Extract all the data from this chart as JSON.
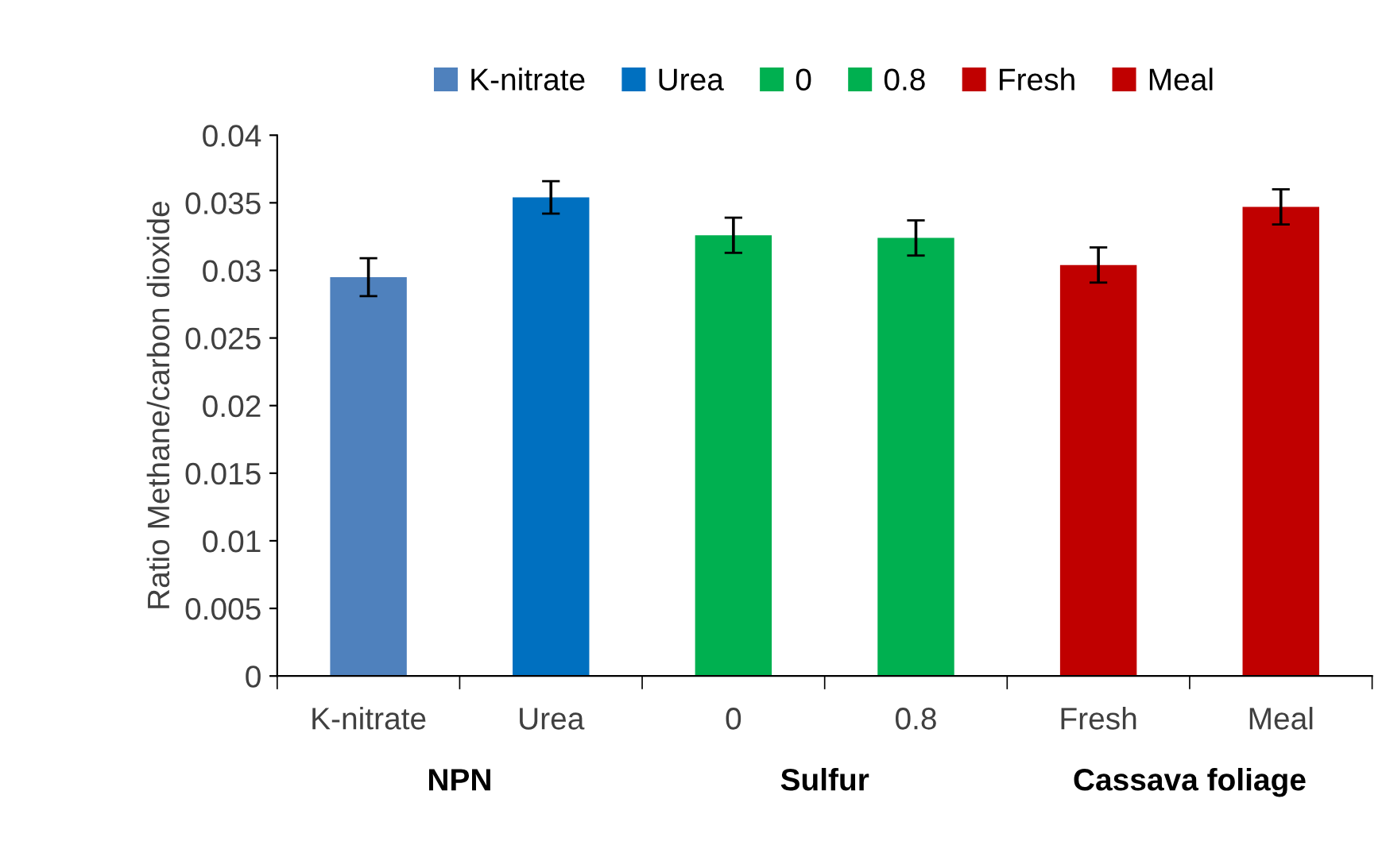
{
  "chart_data": {
    "type": "bar",
    "ylabel": "Ratio Methane/carbon dioxide",
    "categories": [
      "K-nitrate",
      "Urea",
      "0",
      "0.8",
      "Fresh",
      "Meal"
    ],
    "series": [
      {
        "name": "K-nitrate",
        "color": "#4f81bd",
        "values": [
          0.0295,
          null,
          null,
          null,
          null,
          null
        ],
        "errors": [
          0.0014,
          null,
          null,
          null,
          null,
          null
        ]
      },
      {
        "name": "Urea",
        "color": "#0070c0",
        "values": [
          null,
          0.0354,
          null,
          null,
          null,
          null
        ],
        "errors": [
          null,
          0.0012,
          null,
          null,
          null,
          null
        ]
      },
      {
        "name": "0",
        "color": "#00b050",
        "values": [
          null,
          null,
          0.0326,
          null,
          null,
          null
        ],
        "errors": [
          null,
          null,
          0.0013,
          null,
          null,
          null
        ]
      },
      {
        "name": "0.8",
        "color": "#00b050",
        "values": [
          null,
          null,
          null,
          0.0324,
          null,
          null
        ],
        "errors": [
          null,
          null,
          null,
          0.0013,
          null,
          null
        ]
      },
      {
        "name": "Fresh",
        "color": "#c00000",
        "values": [
          null,
          null,
          null,
          null,
          0.0304,
          null
        ],
        "errors": [
          null,
          null,
          null,
          null,
          0.0013,
          null
        ]
      },
      {
        "name": "Meal",
        "color": "#c00000",
        "values": [
          null,
          null,
          null,
          null,
          null,
          0.0347
        ],
        "errors": [
          null,
          null,
          null,
          null,
          null,
          0.0013
        ]
      }
    ],
    "ylim": [
      0,
      0.04
    ],
    "yticks": [
      0,
      0.005,
      0.01,
      0.015,
      0.02,
      0.025,
      0.03,
      0.035,
      0.04
    ],
    "grid": false,
    "legend": "top",
    "annotations": [
      "NPN",
      "Sulfur",
      "Cassava foliage"
    ]
  }
}
